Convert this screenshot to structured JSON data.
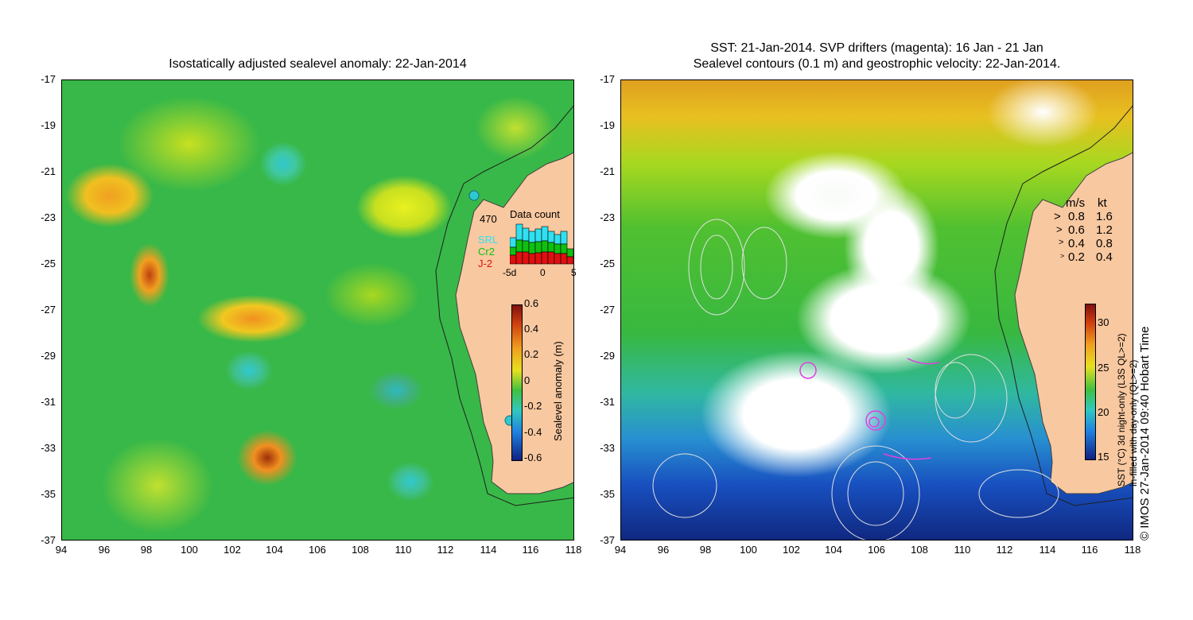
{
  "left_panel": {
    "title": "Isostatically adjusted sealevel anomaly: 22-Jan-2014",
    "y_ticks": [
      "-17",
      "-19",
      "-21",
      "-23",
      "-25",
      "-27",
      "-29",
      "-31",
      "-33",
      "-35",
      "-37"
    ],
    "x_ticks": [
      "94",
      "96",
      "98",
      "100",
      "102",
      "104",
      "106",
      "108",
      "110",
      "112",
      "114",
      "116",
      "118"
    ],
    "data_count": {
      "label": "Data count",
      "max": "470",
      "series": [
        "SRL",
        "Cr2",
        "J-2"
      ],
      "series_colors": [
        "#30e0f0",
        "#10c010",
        "#e01010"
      ],
      "x_ticks": [
        "-5d",
        "0",
        "5"
      ]
    },
    "colorbar": {
      "label": "Sealevel anomaly (m)",
      "ticks": [
        "0.6",
        "0.4",
        "0.2",
        "0",
        "-0.2",
        "-0.4",
        "-0.6"
      ]
    }
  },
  "right_panel": {
    "title_line1": "SST: 21-Jan-2014. SVP drifters (magenta): 16 Jan - 21 Jan",
    "title_line2": "Sealevel contours (0.1 m) and geostrophic velocity: 22-Jan-2014.",
    "y_ticks": [
      "-17",
      "-19",
      "-21",
      "-23",
      "-25",
      "-27",
      "-29",
      "-31",
      "-33",
      "-35",
      "-37"
    ],
    "x_ticks": [
      "94",
      "96",
      "98",
      "100",
      "102",
      "104",
      "106",
      "108",
      "110",
      "112",
      "114",
      "116",
      "118"
    ],
    "velocity_legend": {
      "header_ms": "m/s",
      "header_kt": "kt",
      "rows": [
        {
          "ms": "0.8",
          "kt": "1.6"
        },
        {
          "ms": "0.6",
          "kt": "1.2"
        },
        {
          "ms": "0.4",
          "kt": "0.8"
        },
        {
          "ms": "0.2",
          "kt": "0.4"
        }
      ]
    },
    "colorbar": {
      "label_line1": "SST (°C) 3d night-only (L3S QL>=2)",
      "label_line2": "in-filled with day-only (QL>=2)",
      "ticks": [
        "30",
        "25",
        "20",
        "15"
      ]
    }
  },
  "copyright": "© IMOS 27-Jan-2014 09:40 Hobart Time",
  "colors": {
    "land": "#f8c8a0",
    "cloud": "#ffffff",
    "drifter": "#e040e0"
  }
}
